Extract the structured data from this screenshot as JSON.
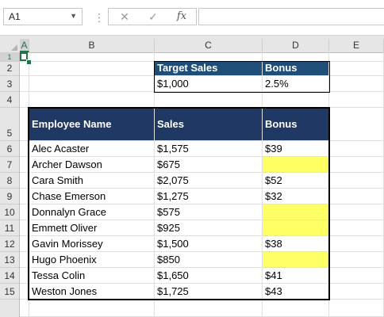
{
  "formula_bar": {
    "name_box": "A1",
    "cancel_icon": "✕",
    "enter_icon": "✓",
    "function_label": "fx",
    "formula": ""
  },
  "columns": [
    "A",
    "B",
    "C",
    "D",
    "E"
  ],
  "selected_column": "A",
  "rows": [
    "1",
    "2",
    "3",
    "4",
    "5",
    "6",
    "7",
    "8",
    "9",
    "10",
    "11",
    "12",
    "13",
    "14",
    "15"
  ],
  "selected_row": "1",
  "target_table": {
    "headers": [
      "Target Sales",
      "Bonus"
    ],
    "values": [
      "$1,000",
      "2.5%"
    ]
  },
  "main_table": {
    "headers": [
      "Employee Name",
      "Sales",
      "Bonus"
    ],
    "rows": [
      {
        "name": "Alec Acaster",
        "sales": "$1,575",
        "bonus": "$39",
        "highlight": false
      },
      {
        "name": "Archer Dawson",
        "sales": "$675",
        "bonus": "",
        "highlight": true
      },
      {
        "name": "Cara Smith",
        "sales": "$2,075",
        "bonus": "$52",
        "highlight": false
      },
      {
        "name": "Chase Emerson",
        "sales": "$1,275",
        "bonus": "$32",
        "highlight": false
      },
      {
        "name": "Donnalyn Grace",
        "sales": "$575",
        "bonus": "",
        "highlight": true
      },
      {
        "name": "Emmett Oliver",
        "sales": "$925",
        "bonus": "",
        "highlight": true
      },
      {
        "name": "Gavin Morissey",
        "sales": "$1,500",
        "bonus": "$38",
        "highlight": false
      },
      {
        "name": "Hugo Phoenix",
        "sales": "$850",
        "bonus": "",
        "highlight": true
      },
      {
        "name": "Tessa Colin",
        "sales": "$1,650",
        "bonus": "$41",
        "highlight": false
      },
      {
        "name": "Weston Jones",
        "sales": "$1,725",
        "bonus": "$43",
        "highlight": false
      }
    ]
  },
  "colors": {
    "header_fill_small": "#1f4e79",
    "header_fill_main": "#203864",
    "highlight_fill": "#ffff66",
    "selection_green": "#217346"
  }
}
